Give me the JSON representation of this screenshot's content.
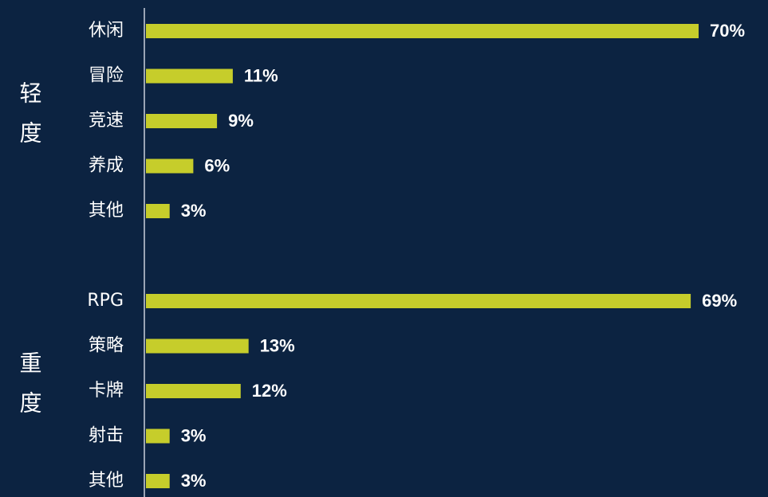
{
  "chart_data": {
    "type": "bar",
    "orientation": "horizontal",
    "color": "#c6cd2b",
    "groups": [
      {
        "name": "轻度",
        "categories": [
          "休闲",
          "冒险",
          "竞速",
          "养成",
          "其他"
        ],
        "values": [
          70,
          11,
          9,
          6,
          3
        ],
        "value_labels": [
          "70%",
          "11%",
          "9%",
          "6%",
          "3%"
        ]
      },
      {
        "name": "重度",
        "categories": [
          "RPG",
          "策略",
          "卡牌",
          "射击",
          "其他"
        ],
        "values": [
          69,
          13,
          12,
          3,
          3
        ],
        "value_labels": [
          "69%",
          "13%",
          "12%",
          "3%",
          "3%"
        ]
      }
    ]
  }
}
